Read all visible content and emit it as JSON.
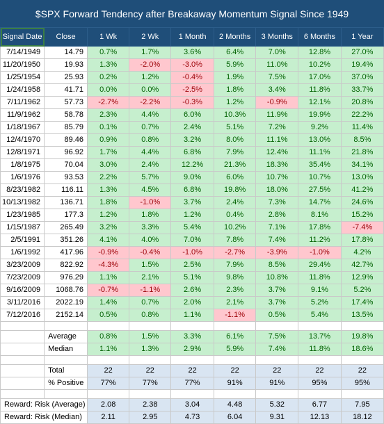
{
  "title": "$SPX Forward Tendency after Breakaway Momentum Signal Since 1949",
  "columns": [
    "Signal Date",
    "Close",
    "1 Wk",
    "2 Wk",
    "1 Month",
    "2 Months",
    "3 Months",
    "6 Months",
    "1 Year"
  ],
  "rows": [
    {
      "date": "7/14/1949",
      "close": "14.79",
      "vals": [
        "0.7%",
        "1.7%",
        "3.6%",
        "6.4%",
        "7.0%",
        "12.8%",
        "27.0%"
      ]
    },
    {
      "date": "11/20/1950",
      "close": "19.93",
      "vals": [
        "1.3%",
        "-2.0%",
        "-3.0%",
        "5.9%",
        "11.0%",
        "10.2%",
        "19.4%"
      ]
    },
    {
      "date": "1/25/1954",
      "close": "25.93",
      "vals": [
        "0.2%",
        "1.2%",
        "-0.4%",
        "1.9%",
        "7.5%",
        "17.0%",
        "37.0%"
      ]
    },
    {
      "date": "1/24/1958",
      "close": "41.71",
      "vals": [
        "0.0%",
        "0.0%",
        "-2.5%",
        "1.8%",
        "3.4%",
        "11.8%",
        "33.7%"
      ]
    },
    {
      "date": "7/11/1962",
      "close": "57.73",
      "vals": [
        "-2.7%",
        "-2.2%",
        "-0.3%",
        "1.2%",
        "-0.9%",
        "12.1%",
        "20.8%"
      ]
    },
    {
      "date": "11/9/1962",
      "close": "58.78",
      "vals": [
        "2.3%",
        "4.4%",
        "6.0%",
        "10.3%",
        "11.9%",
        "19.9%",
        "22.2%"
      ]
    },
    {
      "date": "1/18/1967",
      "close": "85.79",
      "vals": [
        "0.1%",
        "0.7%",
        "2.4%",
        "5.1%",
        "7.2%",
        "9.2%",
        "11.4%"
      ]
    },
    {
      "date": "12/4/1970",
      "close": "89.46",
      "vals": [
        "0.9%",
        "0.8%",
        "3.2%",
        "8.0%",
        "11.1%",
        "13.0%",
        "8.5%"
      ]
    },
    {
      "date": "12/8/1971",
      "close": "96.92",
      "vals": [
        "1.7%",
        "4.4%",
        "6.8%",
        "7.9%",
        "12.4%",
        "11.1%",
        "21.8%"
      ]
    },
    {
      "date": "1/8/1975",
      "close": "70.04",
      "vals": [
        "3.0%",
        "2.4%",
        "12.2%",
        "21.3%",
        "18.3%",
        "35.4%",
        "34.1%"
      ]
    },
    {
      "date": "1/6/1976",
      "close": "93.53",
      "vals": [
        "2.2%",
        "5.7%",
        "9.0%",
        "6.0%",
        "10.7%",
        "10.7%",
        "13.0%"
      ]
    },
    {
      "date": "8/23/1982",
      "close": "116.11",
      "vals": [
        "1.3%",
        "4.5%",
        "6.8%",
        "19.8%",
        "18.0%",
        "27.5%",
        "41.2%"
      ]
    },
    {
      "date": "10/13/1982",
      "close": "136.71",
      "vals": [
        "1.8%",
        "-1.0%",
        "3.7%",
        "2.4%",
        "7.3%",
        "14.7%",
        "24.6%"
      ]
    },
    {
      "date": "1/23/1985",
      "close": "177.3",
      "vals": [
        "1.2%",
        "1.8%",
        "1.2%",
        "0.4%",
        "2.8%",
        "8.1%",
        "15.2%"
      ]
    },
    {
      "date": "1/15/1987",
      "close": "265.49",
      "vals": [
        "3.2%",
        "3.3%",
        "5.4%",
        "10.2%",
        "7.1%",
        "17.8%",
        "-7.4%"
      ]
    },
    {
      "date": "2/5/1991",
      "close": "351.26",
      "vals": [
        "4.1%",
        "4.0%",
        "7.0%",
        "7.8%",
        "7.4%",
        "11.2%",
        "17.8%"
      ]
    },
    {
      "date": "1/6/1992",
      "close": "417.96",
      "vals": [
        "-0.9%",
        "-0.4%",
        "-1.0%",
        "-2.7%",
        "-3.9%",
        "-1.0%",
        "4.2%"
      ]
    },
    {
      "date": "3/23/2009",
      "close": "822.92",
      "vals": [
        "-4.3%",
        "1.5%",
        "2.5%",
        "7.9%",
        "8.5%",
        "29.4%",
        "42.7%"
      ]
    },
    {
      "date": "7/23/2009",
      "close": "976.29",
      "vals": [
        "1.1%",
        "2.1%",
        "5.1%",
        "9.8%",
        "10.8%",
        "11.8%",
        "12.9%"
      ]
    },
    {
      "date": "9/16/2009",
      "close": "1068.76",
      "vals": [
        "-0.7%",
        "-1.1%",
        "2.6%",
        "2.3%",
        "3.7%",
        "9.1%",
        "5.2%"
      ]
    },
    {
      "date": "3/11/2016",
      "close": "2022.19",
      "vals": [
        "1.4%",
        "0.7%",
        "2.0%",
        "2.1%",
        "3.7%",
        "5.2%",
        "17.4%"
      ]
    },
    {
      "date": "7/12/2016",
      "close": "2152.14",
      "vals": [
        "0.5%",
        "0.8%",
        "1.1%",
        "-1.1%",
        "0.5%",
        "5.4%",
        "13.5%"
      ]
    }
  ],
  "summary": [
    {
      "label": "Average",
      "vals": [
        "0.8%",
        "1.5%",
        "3.3%",
        "6.1%",
        "7.5%",
        "13.7%",
        "19.8%"
      ]
    },
    {
      "label": "Median",
      "vals": [
        "1.1%",
        "1.3%",
        "2.9%",
        "5.9%",
        "7.4%",
        "11.8%",
        "18.6%"
      ]
    }
  ],
  "counts": [
    {
      "label": "Total",
      "vals": [
        "22",
        "22",
        "22",
        "22",
        "22",
        "22",
        "22"
      ]
    },
    {
      "label": "% Positive",
      "vals": [
        "77%",
        "77%",
        "77%",
        "91%",
        "91%",
        "95%",
        "95%"
      ]
    }
  ],
  "reward": [
    {
      "label": "Reward:  Risk (Average)",
      "vals": [
        "2.08",
        "2.38",
        "3.04",
        "4.48",
        "5.32",
        "6.77",
        "7.95"
      ]
    },
    {
      "label": "Reward:  Risk (Median)",
      "vals": [
        "2.11",
        "2.95",
        "4.73",
        "6.04",
        "9.31",
        "12.13",
        "18.12"
      ]
    }
  ],
  "colors": {
    "header": "#1f4e79",
    "positive_fill": "#c6efce",
    "negative_fill": "#ffc7ce",
    "stat_fill": "#d9e5f2"
  }
}
